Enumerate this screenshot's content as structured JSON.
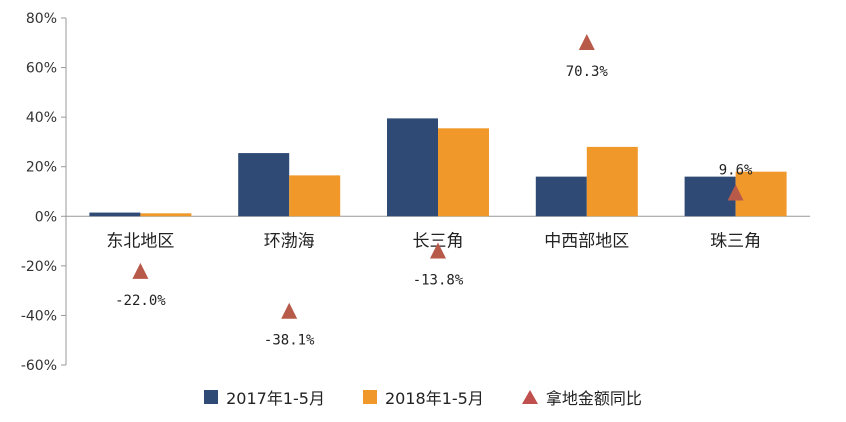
{
  "chart_data": {
    "type": "bar",
    "categories": [
      "东北地区",
      "环渤海",
      "长三角",
      "中西部地区",
      "珠三角"
    ],
    "series": [
      {
        "name": "2017年1-5月",
        "color": "#2e4a75",
        "values": [
          1.5,
          25.5,
          39.5,
          16.0,
          16.0
        ]
      },
      {
        "name": "2018年1-5月",
        "color": "#f0992a",
        "values": [
          1.2,
          16.5,
          35.5,
          28.0,
          18.0
        ]
      }
    ],
    "markers": {
      "name": "拿地金额同比",
      "color": "#b85a4a",
      "values": [
        -22.0,
        -38.1,
        -13.8,
        70.3,
        9.6
      ],
      "labels": [
        "-22.0%",
        "-38.1%",
        "-13.8%",
        "70.3%",
        "9.6%"
      ]
    },
    "yticks": [
      "80%",
      "60%",
      "40%",
      "20%",
      "0%",
      "-20%",
      "-40%",
      "-60%"
    ],
    "ytick_values": [
      80,
      60,
      40,
      20,
      0,
      -20,
      -40,
      -60
    ],
    "ylim": [
      -60,
      80
    ],
    "legend_position": "bottom"
  }
}
